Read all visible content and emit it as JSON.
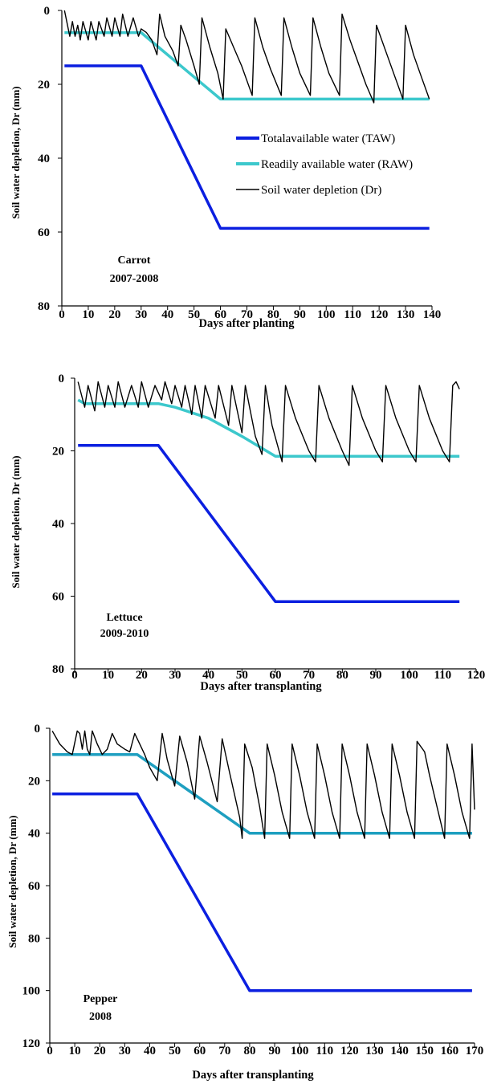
{
  "colors": {
    "taw": "#0b1fe0",
    "raw": "#3cc8cc",
    "raw_pepper": "#1e9fc0",
    "dr": "#000000"
  },
  "chart_data": [
    {
      "type": "line",
      "crop": "Carrot",
      "season": "2007-2008",
      "xlabel": "Days after planting",
      "ylabel": "Soil water depletion, Dr (mm)",
      "xlim": [
        0,
        140
      ],
      "ylim": [
        0,
        80
      ],
      "y_reversed": true,
      "xticks": [
        0,
        10,
        20,
        30,
        40,
        50,
        60,
        70,
        80,
        90,
        100,
        110,
        120,
        130,
        140
      ],
      "yticks": [
        0,
        20,
        40,
        60,
        80
      ],
      "legend": "center-right",
      "series": [
        {
          "name": "Totalavailable water (TAW)",
          "color": "taw",
          "points": [
            [
              1,
              15
            ],
            [
              30,
              15
            ],
            [
              60,
              59
            ],
            [
              139,
              59
            ]
          ]
        },
        {
          "name": "Readily available water (RAW)",
          "color": "raw",
          "points": [
            [
              1,
              6
            ],
            [
              30,
              6
            ],
            [
              60,
              24
            ],
            [
              139,
              24
            ]
          ]
        },
        {
          "name": "Soil water depletion (Dr)",
          "color": "dr",
          "points": [
            [
              1,
              0
            ],
            [
              3,
              7
            ],
            [
              4,
              3
            ],
            [
              5,
              7
            ],
            [
              6,
              4
            ],
            [
              7,
              8
            ],
            [
              8,
              3
            ],
            [
              10,
              8
            ],
            [
              11,
              3
            ],
            [
              13,
              8
            ],
            [
              14,
              3
            ],
            [
              16,
              7
            ],
            [
              17,
              2
            ],
            [
              19,
              7
            ],
            [
              20,
              2
            ],
            [
              22,
              7
            ],
            [
              23,
              1
            ],
            [
              25,
              7
            ],
            [
              27,
              2
            ],
            [
              29,
              7
            ],
            [
              30,
              5
            ],
            [
              32,
              6
            ],
            [
              34,
              8
            ],
            [
              36,
              12
            ],
            [
              37,
              1
            ],
            [
              39,
              7
            ],
            [
              42,
              11
            ],
            [
              44,
              15
            ],
            [
              45,
              4
            ],
            [
              47,
              8
            ],
            [
              50,
              15
            ],
            [
              52,
              20
            ],
            [
              53,
              2
            ],
            [
              56,
              10
            ],
            [
              59,
              17
            ],
            [
              61,
              24
            ],
            [
              62,
              5
            ],
            [
              65,
              10
            ],
            [
              68,
              15
            ],
            [
              72,
              23
            ],
            [
              73,
              2
            ],
            [
              76,
              10
            ],
            [
              79,
              16
            ],
            [
              83,
              23
            ],
            [
              84,
              2
            ],
            [
              87,
              10
            ],
            [
              90,
              17
            ],
            [
              94,
              23
            ],
            [
              95,
              2
            ],
            [
              98,
              10
            ],
            [
              101,
              17
            ],
            [
              105,
              23
            ],
            [
              106,
              1
            ],
            [
              109,
              8
            ],
            [
              112,
              14
            ],
            [
              115,
              20
            ],
            [
              118,
              25
            ],
            [
              119,
              4
            ],
            [
              123,
              12
            ],
            [
              126,
              18
            ],
            [
              129,
              24
            ],
            [
              130,
              4
            ],
            [
              133,
              12
            ],
            [
              136,
              18
            ],
            [
              139,
              24
            ]
          ]
        }
      ]
    },
    {
      "type": "line",
      "crop": "Lettuce",
      "season": "2009-2010",
      "xlabel": "Days after transplanting",
      "ylabel": "Soil water depletion, Dr (mm)",
      "xlim": [
        0,
        120
      ],
      "ylim": [
        0,
        80
      ],
      "y_reversed": true,
      "xticks": [
        0,
        10,
        20,
        30,
        40,
        50,
        60,
        70,
        80,
        90,
        100,
        110,
        120
      ],
      "yticks": [
        0,
        20,
        40,
        60,
        80
      ],
      "series": [
        {
          "name": "TAW",
          "color": "taw",
          "points": [
            [
              1,
              18.5
            ],
            [
              25,
              18.5
            ],
            [
              60,
              61.5
            ],
            [
              115,
              61.5
            ]
          ]
        },
        {
          "name": "RAW",
          "color": "raw",
          "points": [
            [
              1,
              6
            ],
            [
              3,
              7
            ],
            [
              25,
              7
            ],
            [
              30,
              8
            ],
            [
              40,
              11
            ],
            [
              50,
              16
            ],
            [
              60,
              21.5
            ],
            [
              115,
              21.5
            ]
          ]
        },
        {
          "name": "Dr",
          "color": "dr",
          "points": [
            [
              1,
              1
            ],
            [
              3,
              8
            ],
            [
              4,
              2
            ],
            [
              6,
              9
            ],
            [
              7,
              1
            ],
            [
              9,
              8
            ],
            [
              10,
              2
            ],
            [
              12,
              8
            ],
            [
              13,
              1
            ],
            [
              15,
              8
            ],
            [
              17,
              2
            ],
            [
              19,
              8
            ],
            [
              20,
              1
            ],
            [
              22,
              8
            ],
            [
              24,
              2
            ],
            [
              26,
              6
            ],
            [
              27,
              1
            ],
            [
              29,
              7
            ],
            [
              30,
              2
            ],
            [
              32,
              8
            ],
            [
              33,
              2
            ],
            [
              35,
              10
            ],
            [
              36,
              2
            ],
            [
              38,
              11
            ],
            [
              39,
              2
            ],
            [
              42,
              11
            ],
            [
              43,
              2
            ],
            [
              46,
              13
            ],
            [
              47,
              2
            ],
            [
              50,
              15
            ],
            [
              51,
              2
            ],
            [
              54,
              16
            ],
            [
              56,
              21
            ],
            [
              57,
              2
            ],
            [
              59,
              13
            ],
            [
              62,
              23
            ],
            [
              63,
              2
            ],
            [
              66,
              11
            ],
            [
              70,
              20
            ],
            [
              72,
              23
            ],
            [
              73,
              2
            ],
            [
              76,
              11
            ],
            [
              80,
              20
            ],
            [
              82,
              24
            ],
            [
              83,
              2
            ],
            [
              86,
              11
            ],
            [
              90,
              20
            ],
            [
              92,
              23
            ],
            [
              93,
              2
            ],
            [
              96,
              11
            ],
            [
              100,
              20
            ],
            [
              102,
              23
            ],
            [
              103,
              2
            ],
            [
              106,
              11
            ],
            [
              110,
              20
            ],
            [
              112,
              23
            ],
            [
              113,
              2
            ],
            [
              114,
              1
            ],
            [
              115,
              3
            ]
          ]
        }
      ]
    },
    {
      "type": "line",
      "crop": "Pepper",
      "season": "2008",
      "xlabel": "Days after transplanting",
      "ylabel": "Soil water depletion, Dr (mm)",
      "xlim": [
        0,
        170
      ],
      "ylim": [
        0,
        120
      ],
      "y_reversed": true,
      "xticks": [
        0,
        10,
        20,
        30,
        40,
        50,
        60,
        70,
        80,
        90,
        100,
        110,
        120,
        130,
        140,
        150,
        160,
        170
      ],
      "yticks": [
        0,
        20,
        40,
        60,
        80,
        100,
        120
      ],
      "series": [
        {
          "name": "TAW",
          "color": "taw",
          "points": [
            [
              1,
              25
            ],
            [
              35,
              25
            ],
            [
              80,
              100
            ],
            [
              169,
              100
            ]
          ]
        },
        {
          "name": "RAW",
          "color": "raw_pepper",
          "points": [
            [
              1,
              10
            ],
            [
              35,
              10
            ],
            [
              80,
              40
            ],
            [
              169,
              40
            ]
          ]
        },
        {
          "name": "Dr",
          "color": "dr",
          "points": [
            [
              1,
              1
            ],
            [
              4,
              6
            ],
            [
              7,
              9
            ],
            [
              9,
              10
            ],
            [
              11,
              1
            ],
            [
              12,
              2
            ],
            [
              13,
              8
            ],
            [
              14,
              1
            ],
            [
              15,
              8
            ],
            [
              16,
              10
            ],
            [
              17,
              1
            ],
            [
              19,
              6
            ],
            [
              21,
              10
            ],
            [
              23,
              8
            ],
            [
              25,
              2
            ],
            [
              27,
              6
            ],
            [
              30,
              8
            ],
            [
              32,
              9
            ],
            [
              34,
              2
            ],
            [
              36,
              6
            ],
            [
              38,
              10
            ],
            [
              40,
              15
            ],
            [
              43,
              20
            ],
            [
              45,
              2
            ],
            [
              47,
              12
            ],
            [
              50,
              22
            ],
            [
              52,
              3
            ],
            [
              55,
              13
            ],
            [
              58,
              27
            ],
            [
              60,
              3
            ],
            [
              63,
              13
            ],
            [
              67,
              28
            ],
            [
              69,
              4
            ],
            [
              72,
              17
            ],
            [
              76,
              34
            ],
            [
              77,
              42
            ],
            [
              78,
              6
            ],
            [
              81,
              15
            ],
            [
              84,
              30
            ],
            [
              86,
              42
            ],
            [
              87,
              6
            ],
            [
              90,
              18
            ],
            [
              93,
              32
            ],
            [
              96,
              42
            ],
            [
              97,
              6
            ],
            [
              100,
              18
            ],
            [
              103,
              32
            ],
            [
              106,
              42
            ],
            [
              107,
              6
            ],
            [
              110,
              18
            ],
            [
              113,
              32
            ],
            [
              116,
              42
            ],
            [
              117,
              6
            ],
            [
              120,
              18
            ],
            [
              123,
              32
            ],
            [
              126,
              42
            ],
            [
              127,
              6
            ],
            [
              130,
              18
            ],
            [
              133,
              32
            ],
            [
              136,
              42
            ],
            [
              137,
              6
            ],
            [
              140,
              18
            ],
            [
              143,
              32
            ],
            [
              146,
              42
            ],
            [
              147,
              5
            ],
            [
              150,
              9
            ],
            [
              152,
              18
            ],
            [
              155,
              30
            ],
            [
              158,
              42
            ],
            [
              159,
              6
            ],
            [
              162,
              18
            ],
            [
              165,
              32
            ],
            [
              168,
              42
            ],
            [
              169,
              6
            ],
            [
              170,
              31
            ]
          ]
        }
      ]
    }
  ]
}
